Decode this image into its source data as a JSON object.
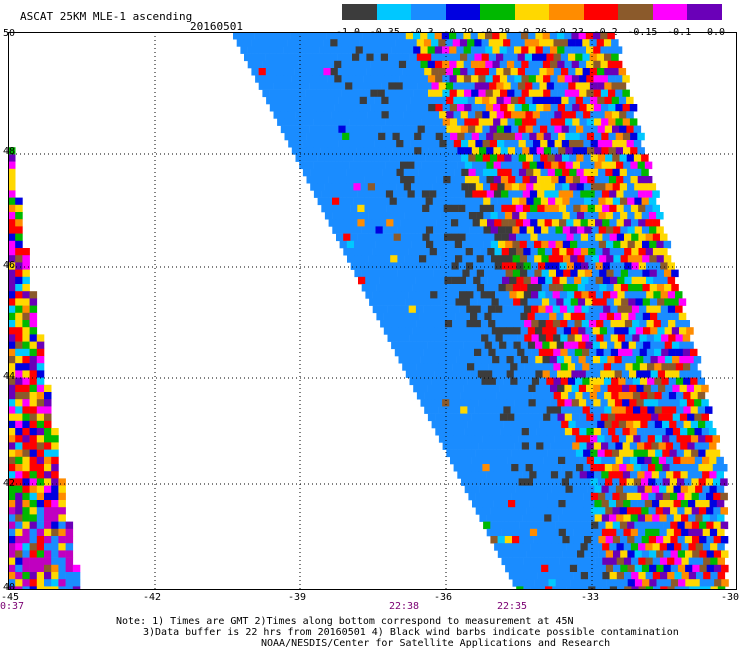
{
  "header": {
    "title": "ASCAT 25KM MLE-1 ascending",
    "date": "20160501"
  },
  "legend": {
    "colors": [
      "#3c3c3c",
      "#00c8ff",
      "#1a8cff",
      "#0000e0",
      "#00b800",
      "#ffd800",
      "#ff8c00",
      "#ff0000",
      "#8b5a2b",
      "#ff00ff",
      "#6a00b8"
    ],
    "labels": [
      "-1.0",
      "-0.35",
      "-0.3",
      "-0.29",
      "-0.28",
      "-0.26",
      "-0.23",
      "-0.2",
      "-0.15",
      "-0.1",
      "0.0"
    ]
  },
  "map": {
    "lat_labels": [
      "50",
      "48",
      "46",
      "44",
      "42",
      "40"
    ],
    "lon_labels": [
      "-45",
      "-42",
      "-39",
      "-36",
      "-33",
      "-30"
    ],
    "time_labels": [
      "0:37",
      "22:38",
      "22:35"
    ],
    "swath_colors": {
      "background": "#1a8cff",
      "contamination": "#3c3c3c",
      "palette": [
        "#00c8ff",
        "#0000e0",
        "#00b800",
        "#ffd800",
        "#ff8c00",
        "#ff0000",
        "#8b5a2b",
        "#ff00ff",
        "#6a00b8",
        "#ffd800",
        "#ff0000"
      ]
    }
  },
  "notes": {
    "line1": "Note: 1) Times are GMT 2)Times along bottom correspond to measurement at 45N",
    "line2": "3)Data buffer is 22 hrs from 20160501 4) Black wind barbs indicate possible contamination",
    "line3": "NOAA/NESDIS/Center for Satellite Applications and Research"
  }
}
